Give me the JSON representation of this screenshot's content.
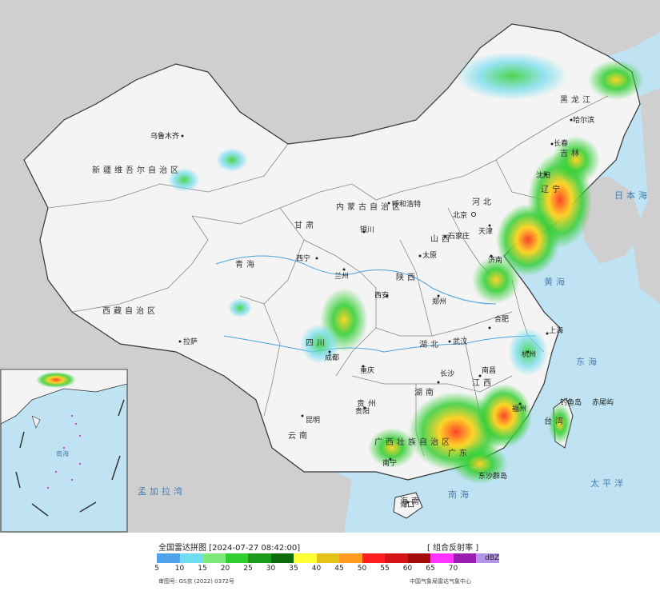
{
  "map": {
    "regions": [
      {
        "key": "xinjiang",
        "label": "新疆维吾尔自治区"
      },
      {
        "key": "xizang",
        "label": "西藏自治区"
      },
      {
        "key": "qinghai",
        "label": "青海"
      },
      {
        "key": "gansu",
        "label": "甘肃"
      },
      {
        "key": "neimenggu",
        "label": "内蒙古自治区"
      },
      {
        "key": "heilongjiang",
        "label": "黑龙江"
      },
      {
        "key": "jilin",
        "label": "吉林"
      },
      {
        "key": "liaoning",
        "label": "辽宁"
      },
      {
        "key": "hebei",
        "label": "河北"
      },
      {
        "key": "shanxi",
        "label": "山西"
      },
      {
        "key": "shaanxi",
        "label": "陕西"
      },
      {
        "key": "sichuan",
        "label": "四川"
      },
      {
        "key": "guizhou",
        "label": "贵州"
      },
      {
        "key": "yunnan",
        "label": "云南"
      },
      {
        "key": "hubei",
        "label": "湖北"
      },
      {
        "key": "hunan",
        "label": "湖南"
      },
      {
        "key": "jiangxi",
        "label": "江西"
      },
      {
        "key": "guangxi",
        "label": "广西壮族自治区"
      },
      {
        "key": "guangdong",
        "label": "广东"
      },
      {
        "key": "taiwan",
        "label": "台湾"
      },
      {
        "key": "hainan",
        "label": "海南"
      }
    ],
    "cities": [
      {
        "key": "urumqi",
        "label": "乌鲁木齐"
      },
      {
        "key": "lhasa",
        "label": "拉萨"
      },
      {
        "key": "xining",
        "label": "西宁"
      },
      {
        "key": "lanzhou",
        "label": "兰州"
      },
      {
        "key": "yinchuan",
        "label": "银川"
      },
      {
        "key": "hohhot",
        "label": "呼和浩特"
      },
      {
        "key": "beijing",
        "label": "北京"
      },
      {
        "key": "tianjin",
        "label": "天津"
      },
      {
        "key": "shijiazhuang",
        "label": "石家庄"
      },
      {
        "key": "taiyuan",
        "label": "太原"
      },
      {
        "key": "xian",
        "label": "西安"
      },
      {
        "key": "zhengzhou",
        "label": "郑州"
      },
      {
        "key": "wuhan",
        "label": "武汉"
      },
      {
        "key": "chengdu",
        "label": "成都"
      },
      {
        "key": "chongqing",
        "label": "重庆"
      },
      {
        "key": "guiyang",
        "label": "贵阳"
      },
      {
        "key": "kunming",
        "label": "昆明"
      },
      {
        "key": "nanning",
        "label": "南宁"
      },
      {
        "key": "changsha",
        "label": "长沙"
      },
      {
        "key": "nanchang",
        "label": "南昌"
      },
      {
        "key": "hangzhou",
        "label": "杭州"
      },
      {
        "key": "shanghai",
        "label": "上海"
      },
      {
        "key": "fuzhou",
        "label": "福州"
      },
      {
        "key": "haikou",
        "label": "海口"
      },
      {
        "key": "shenyang",
        "label": "沈阳"
      },
      {
        "key": "changchun",
        "label": "长春"
      },
      {
        "key": "harbin",
        "label": "哈尔滨"
      },
      {
        "key": "jinan",
        "label": "济南"
      },
      {
        "key": "hefei",
        "label": "合肥"
      }
    ],
    "seas": [
      {
        "key": "japan_sea",
        "label": "日本海"
      },
      {
        "key": "yellow_sea",
        "label": "黄海"
      },
      {
        "key": "east_sea",
        "label": "东海"
      },
      {
        "key": "south_sea",
        "label": "南海"
      },
      {
        "key": "pacific",
        "label": "太平洋"
      },
      {
        "key": "bengal",
        "label": "孟加拉湾"
      }
    ],
    "islands": [
      {
        "key": "diaoyu",
        "label": "钓鱼岛"
      },
      {
        "key": "chiwei",
        "label": "赤尾屿"
      },
      {
        "key": "dongsha",
        "label": "东沙群岛"
      }
    ]
  },
  "inset": {
    "sea_label": "南海"
  },
  "legend": {
    "title": "全国雷达拼图 [2024-07-27 08:42:00]",
    "product": "[ 组合反射率 ]",
    "unit": "dBZ",
    "ticks": [
      "5",
      "10",
      "15",
      "20",
      "25",
      "30",
      "35",
      "40",
      "45",
      "50",
      "55",
      "60",
      "65",
      "70"
    ],
    "colors": [
      "#4fa3e8",
      "#6fdcef",
      "#7fe87a",
      "#2fcf2f",
      "#1c9c1c",
      "#0c6c0c",
      "#ffff33",
      "#e5c218",
      "#ff9a1e",
      "#ff1e1e",
      "#d41414",
      "#a50a0a",
      "#ff33ff",
      "#9a1fb0",
      "#b494e8"
    ],
    "approval": "审图号: GS京 (2022) 0372号",
    "source": "中国气象局雷达气象中心"
  }
}
